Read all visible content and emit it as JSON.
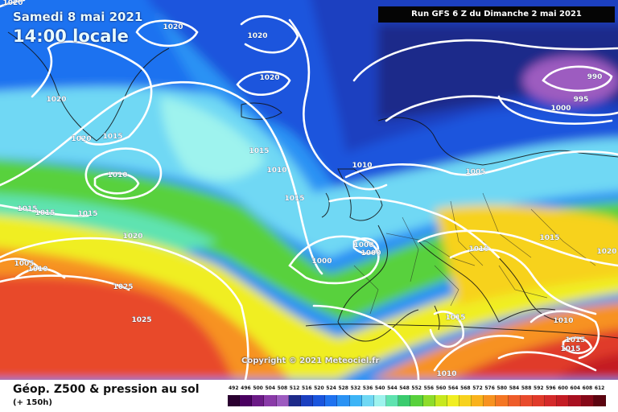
{
  "header": {
    "date": "Samedi 8 mai 2021",
    "time": "14:00 locale",
    "run": "Run GFS 6 Z du Dimanche 2 mai 2021"
  },
  "footer": {
    "title": "Géop. Z500 & pression au sol",
    "subtitle": "(+ 150h)",
    "copyright": "Copyright © 2021 Meteociel.fr"
  },
  "scale": {
    "values": [
      492,
      496,
      500,
      504,
      508,
      512,
      516,
      520,
      524,
      528,
      532,
      536,
      540,
      544,
      548,
      552,
      556,
      560,
      564,
      568,
      572,
      576,
      580,
      584,
      588,
      592,
      596,
      600,
      604,
      608,
      612
    ],
    "colors": [
      "#2a0030",
      "#4a0060",
      "#6b1a86",
      "#8a3aa8",
      "#9d5bc0",
      "#1e2a8a",
      "#1b3fc0",
      "#1a55dd",
      "#1f72f0",
      "#2a92f4",
      "#3cb4f6",
      "#6fd8f4",
      "#9ef3ee",
      "#5fe3b0",
      "#3acb6e",
      "#58d13c",
      "#8edc2a",
      "#c7e81e",
      "#f0ee22",
      "#f7d21e",
      "#f9b21c",
      "#f79220",
      "#f47624",
      "#ee5c2a",
      "#e84a2c",
      "#e03a2a",
      "#d42a2a",
      "#c41c24",
      "#a81020",
      "#860818",
      "#5c0410"
    ]
  },
  "map": {
    "isobars": [
      {
        "text": "1020",
        "row": 0
      },
      {
        "text": "1020",
        "row": 1
      },
      {
        "text": "1020",
        "row": 2
      },
      {
        "text": "1020",
        "row": 3
      },
      {
        "text": "1020",
        "row": 4
      },
      {
        "text": "1020",
        "row": 5
      },
      {
        "text": "1015",
        "row": 6
      },
      {
        "text": "1015",
        "row": 7
      },
      {
        "text": "1010",
        "row": 8
      },
      {
        "text": "1010",
        "row": 9
      },
      {
        "text": "1015",
        "row": 10
      },
      {
        "text": "1015",
        "row": 11
      },
      {
        "text": "1015",
        "row": 12
      },
      {
        "text": "1015",
        "row": 13
      },
      {
        "text": "1020",
        "row": 14
      },
      {
        "text": "1005",
        "row": 15
      },
      {
        "text": "1010",
        "row": 16
      },
      {
        "text": "1025",
        "row": 17
      },
      {
        "text": "1025",
        "row": 18
      },
      {
        "text": "1000",
        "row": 19
      },
      {
        "text": "1000",
        "row": 20
      },
      {
        "text": "1000",
        "row": 21
      },
      {
        "text": "1010",
        "row": 22
      },
      {
        "text": "1005",
        "row": 23
      },
      {
        "text": "1015",
        "row": 24
      },
      {
        "text": "1020",
        "row": 25
      },
      {
        "text": "1015",
        "row": 26
      },
      {
        "text": "1010",
        "row": 27
      },
      {
        "text": "1010",
        "row": 28
      },
      {
        "text": "1015",
        "row": 29
      },
      {
        "text": "1010",
        "row": 30
      },
      {
        "text": "990",
        "row": 31
      },
      {
        "text": "995",
        "row": 32
      },
      {
        "text": "1000",
        "row": 33
      },
      {
        "text": "1015",
        "row": 34
      }
    ]
  }
}
